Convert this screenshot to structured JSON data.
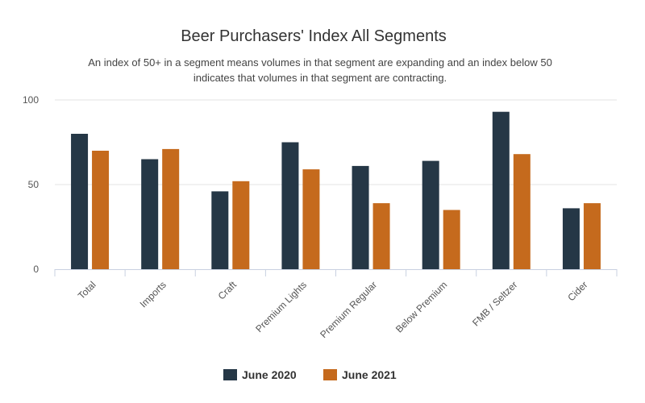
{
  "chart_data": {
    "type": "bar",
    "title": "Beer Purchasers' Index All Segments",
    "subtitle_line1": "An index of 50+ in a segment means volumes in that segment are expanding and an index below 50",
    "subtitle_line2": "indicates that volumes in that segment are contracting.",
    "categories": [
      "Total",
      "Imports",
      "Craft",
      "Premium Lights",
      "Premium Regular",
      "Below Premium",
      "FMB / Seltzer",
      "Cider"
    ],
    "series": [
      {
        "name": "June 2020",
        "color": "#253746",
        "values": [
          80,
          65,
          46,
          75,
          61,
          64,
          93,
          36
        ]
      },
      {
        "name": "June 2021",
        "color": "#c56a1d",
        "values": [
          70,
          71,
          52,
          59,
          39,
          35,
          68,
          39
        ]
      }
    ],
    "ylim": [
      0,
      100
    ],
    "yticks": [
      0,
      50,
      100
    ],
    "xlabel": "",
    "ylabel": "",
    "grid": true,
    "legend_position": "bottom"
  }
}
